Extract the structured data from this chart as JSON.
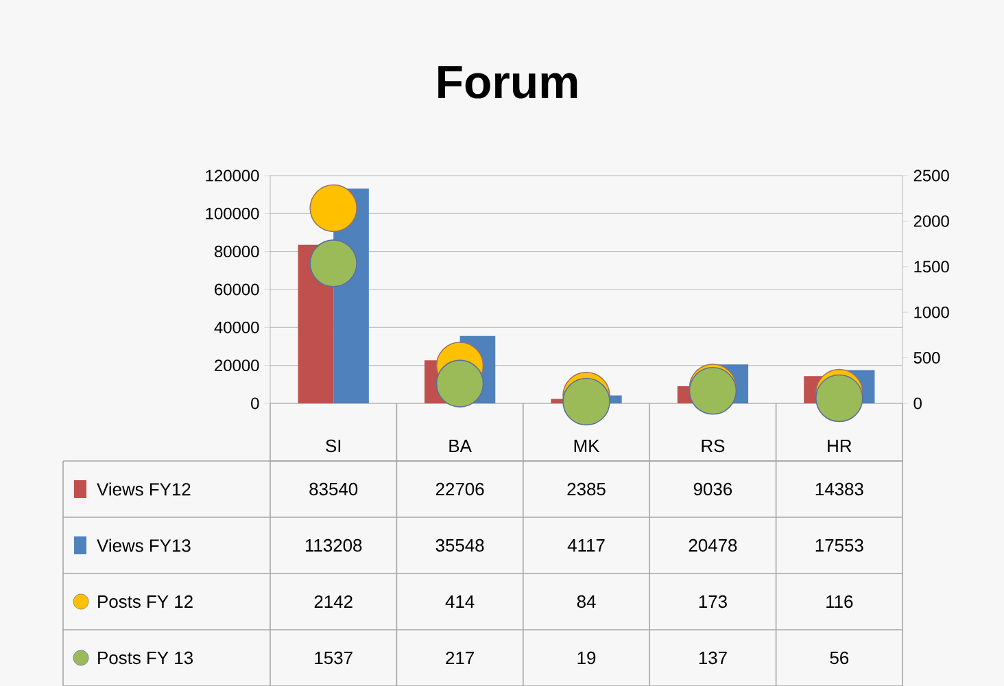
{
  "chart_data": {
    "type": "bar",
    "title": "Forum",
    "categories": [
      "SI",
      "BA",
      "MK",
      "RS",
      "HR"
    ],
    "series": [
      {
        "name": "Views FY12",
        "color": "#c0504d",
        "values": [
          83540,
          22706,
          2385,
          9036,
          14383
        ]
      },
      {
        "name": "Views FY13",
        "color": "#4f81bd",
        "values": [
          113208,
          35548,
          4117,
          20478,
          17553
        ]
      },
      {
        "name": "Posts FY 12",
        "type": "scatter",
        "axis": "y2",
        "color": "#ffc000",
        "values": [
          2142,
          414,
          84,
          173,
          116
        ]
      },
      {
        "name": "Posts FY 13",
        "type": "scatter",
        "axis": "y2",
        "color": "#9bbb59",
        "values": [
          1537,
          217,
          19,
          137,
          56
        ]
      }
    ],
    "ylim": [
      0,
      120000
    ],
    "yticks": [
      0,
      20000,
      40000,
      60000,
      80000,
      100000,
      120000
    ],
    "y2lim": [
      0,
      2500
    ],
    "y2ticks": [
      0,
      500,
      1000,
      1500,
      2000,
      2500
    ],
    "grid": "y",
    "legend": "bottom",
    "marker": "circle",
    "data_labels": true
  }
}
